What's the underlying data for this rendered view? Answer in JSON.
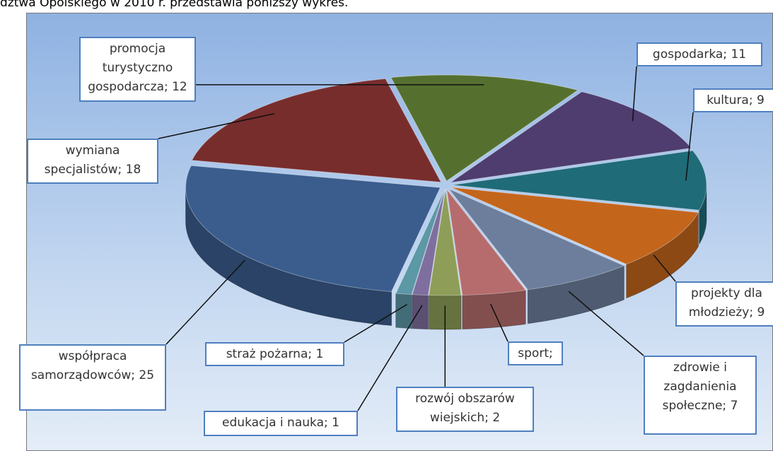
{
  "caption": "dztwa Opolskiego w 2010 r. przedstawia poniższy wykres.",
  "chart_data": {
    "type": "pie",
    "values": [
      12,
      11,
      9,
      9,
      7,
      4,
      2,
      1,
      1,
      25,
      18
    ],
    "value_labels": [
      "promocja turystyczno gospodarcza; 12",
      "gospodarka; 11",
      "kultura; 9",
      "projekty dla młodzieży; 9",
      "zdrowie i zagdanienia społeczne; 7",
      "sport; 4",
      "rozwój obszarów wiejskich; 2",
      "edukacja i nauka; 1",
      "straż pożarna; 1",
      "współpraca samorządowców; 25",
      "wymiana specjalistów; 18"
    ],
    "colors": [
      "#55702e",
      "#4e3d6e",
      "#1f6b78",
      "#c4651c",
      "#6c7e9c",
      "#b66c6c",
      "#8e9e58",
      "#7f6f9f",
      "#5c98a6",
      "#3a5d8e",
      "#782d2d"
    ]
  }
}
